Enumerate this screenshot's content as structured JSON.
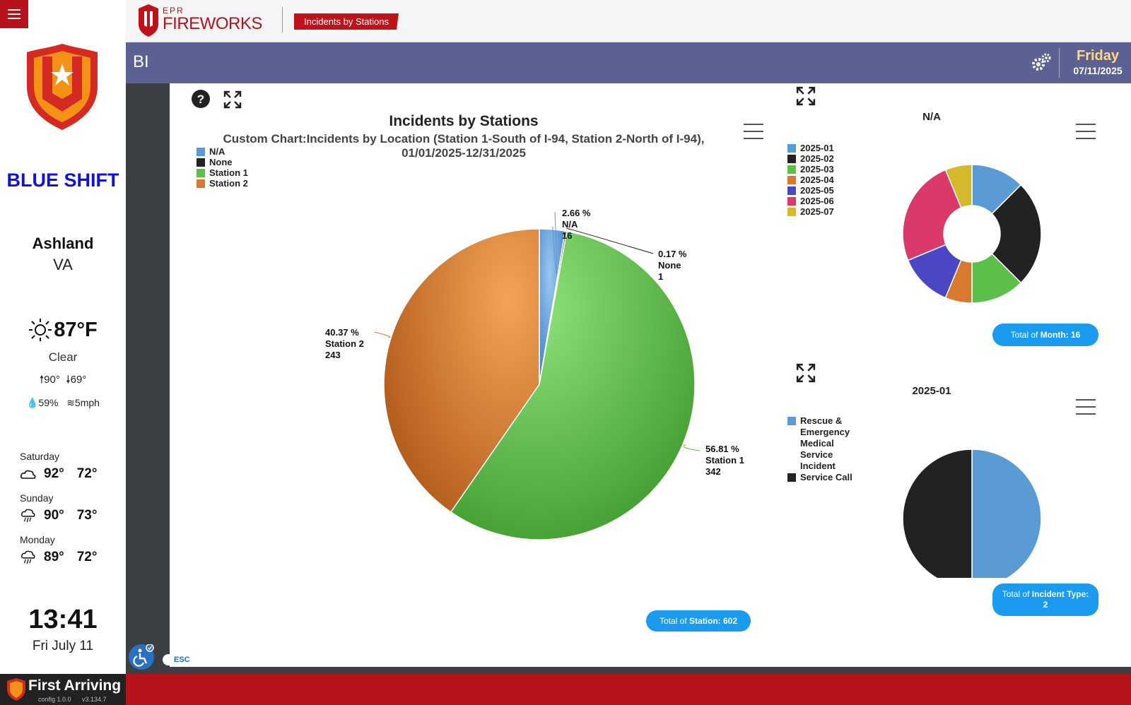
{
  "sidebar": {
    "shift": "BLUE SHIFT",
    "city": "Ashland",
    "state": "VA",
    "weather": {
      "temp": "87°F",
      "condition": "Clear",
      "high": "90°",
      "low": "69°",
      "humidity": "59%",
      "wind": "5mph"
    },
    "forecast": [
      {
        "day": "Saturday",
        "icon": "partly-cloudy-icon",
        "high": "92°",
        "low": "72°"
      },
      {
        "day": "Sunday",
        "icon": "thunderstorm-icon",
        "high": "90°",
        "low": "73°"
      },
      {
        "day": "Monday",
        "icon": "thunderstorm-icon",
        "high": "89°",
        "low": "72°"
      }
    ],
    "time": "13:41",
    "date": "Fri July 11"
  },
  "header": {
    "brand_top": "EPR",
    "brand_main": "FIREWORKS",
    "tag": "Incidents by Stations"
  },
  "bibar": {
    "title": "BI",
    "weekday": "Friday",
    "date": "07/11/2025"
  },
  "footer": {
    "brand": "First Arriving",
    "config": "config 1.0.0",
    "version": "v3.134.7",
    "esc": "ESC"
  },
  "colors": {
    "accent_red": "#b5121b",
    "bi_bar": "#5b6293",
    "pill_blue": "#1a9bef"
  },
  "chart_data": [
    {
      "type": "pie",
      "title": "Incidents by Stations",
      "subtitle_line1": "Custom Chart:Incidents by Location (Station 1-South of I-94, Station 2-North of I-94),",
      "subtitle_line2": "01/01/2025-12/31/2025",
      "legend": [
        "N/A",
        "None",
        "Station 1",
        "Station 2"
      ],
      "slices": [
        {
          "name": "N/A",
          "percent": "2.66 %",
          "value": 16,
          "color": "#5b9bd5"
        },
        {
          "name": "None",
          "percent": "0.17 %",
          "value": 1,
          "color": "#222222"
        },
        {
          "name": "Station 1",
          "percent": "56.81 %",
          "value": 342,
          "color": "#5cbf4a"
        },
        {
          "name": "Station 2",
          "percent": "40.37 %",
          "value": 243,
          "color": "#d9792f"
        }
      ],
      "total_label": "Total of",
      "total_key": "Station: 602"
    },
    {
      "type": "pie",
      "donut": true,
      "title": "N/A",
      "legend": [
        "2025-01",
        "2025-02",
        "2025-03",
        "2025-04",
        "2025-05",
        "2025-06",
        "2025-07"
      ],
      "slices": [
        {
          "name": "2025-01",
          "value": 2,
          "color": "#5b9bd5"
        },
        {
          "name": "2025-02",
          "value": 4,
          "color": "#222222"
        },
        {
          "name": "2025-03",
          "value": 2,
          "color": "#5cbf4a"
        },
        {
          "name": "2025-04",
          "value": 1,
          "color": "#d9792f"
        },
        {
          "name": "2025-05",
          "value": 2,
          "color": "#4a47c4"
        },
        {
          "name": "2025-06",
          "value": 4,
          "color": "#d93a6a"
        },
        {
          "name": "2025-07",
          "value": 1,
          "color": "#d4b92c"
        }
      ],
      "total_label": "Total of",
      "total_key": "Month: 16"
    },
    {
      "type": "pie",
      "title": "2025-01",
      "legend": [
        "Rescue & Emergency Medical Service Incident",
        "Service Call"
      ],
      "legend_lines": [
        [
          "Rescue &",
          "Emergency",
          "Medical",
          "Service",
          "Incident"
        ],
        [
          "Service Call"
        ]
      ],
      "slices": [
        {
          "name": "Rescue & Emergency Medical Service Incident",
          "value": 1,
          "color": "#5b9bd5"
        },
        {
          "name": "Service Call",
          "value": 1,
          "color": "#222222"
        }
      ],
      "total_label": "Total of",
      "total_key": "Incident Type:",
      "total_value": "2"
    }
  ]
}
